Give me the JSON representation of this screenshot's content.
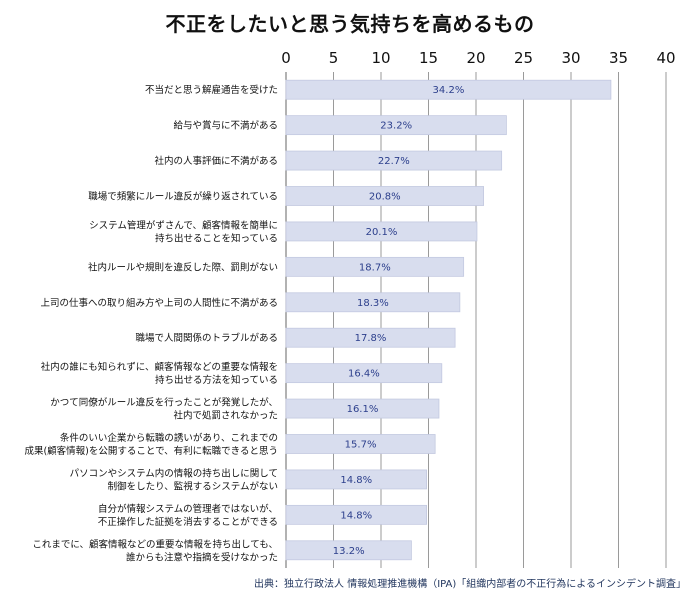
{
  "chart_data": {
    "type": "bar",
    "orientation": "horizontal",
    "title": "不正をしたいと思う気持ちを高めるもの",
    "xlim": [
      0,
      40
    ],
    "xticks": [
      "0",
      "5",
      "10",
      "15",
      "20",
      "25",
      "30",
      "35",
      "40"
    ],
    "categories": [
      [
        "不当だと思う解雇通告を受けた"
      ],
      [
        "給与や賞与に不満がある"
      ],
      [
        "社内の人事評価に不満がある"
      ],
      [
        "職場で頻繁にルール違反が繰り返されている"
      ],
      [
        "システム管理がずさんで、顧客情報を簡単に",
        "持ち出せることを知っている"
      ],
      [
        "社内ルールや規則を違反した際、罰則がない"
      ],
      [
        "上司の仕事への取り組み方や上司の人間性に不満がある"
      ],
      [
        "職場で人間関係のトラブルがある"
      ],
      [
        "社内の誰にも知られずに、顧客情報などの重要な情報を",
        "持ち出せる方法を知っている"
      ],
      [
        "かつて同僚がルール違反を行ったことが発覚したが、",
        "社内で処罰されなかった"
      ],
      [
        "条件のいい企業から転職の誘いがあり、これまでの",
        "成果(顧客情報)を公開することで、有利に転職できると思う"
      ],
      [
        "パソコンやシステム内の情報の持ち出しに関して",
        "制御をしたり、監視するシステムがない"
      ],
      [
        "自分が情報システムの管理者ではないが、",
        "不正操作した証拠を消去することができる"
      ],
      [
        "これまでに、顧客情報などの重要な情報を持ち出しても、",
        "誰からも注意や指摘を受けなかった"
      ]
    ],
    "values": [
      34.2,
      23.2,
      22.7,
      20.8,
      20.1,
      18.7,
      18.3,
      17.8,
      16.4,
      16.1,
      15.7,
      14.8,
      14.8,
      13.2
    ],
    "data_labels": [
      "34.2%",
      "23.2%",
      "22.7%",
      "20.8%",
      "20.1%",
      "18.7%",
      "18.3%",
      "17.8%",
      "16.4%",
      "16.1%",
      "15.7%",
      "14.8%",
      "14.8%",
      "13.2%"
    ],
    "grid": "vertical",
    "legend": "none",
    "colors": {
      "bar": "#d8ddee",
      "bar_stroke": "#c3c9e0",
      "label": "#2c3f8c",
      "grid": "#9a9a9a"
    }
  },
  "source": "出典：独立行政法人 情報処理推進機構（IPA)「組織内部者の不正行為によるインシデント調査」"
}
